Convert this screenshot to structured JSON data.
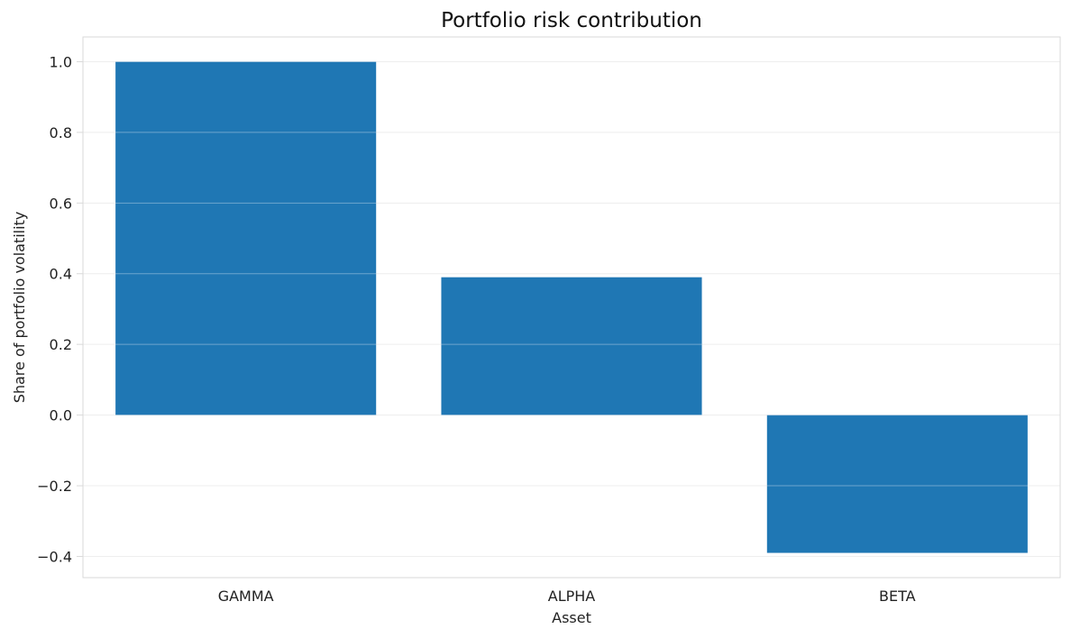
{
  "chart_data": {
    "type": "bar",
    "title": "Portfolio risk contribution",
    "xlabel": "Asset",
    "ylabel": "Share of portfolio volatility",
    "categories": [
      "GAMMA",
      "ALPHA",
      "BETA"
    ],
    "values": [
      1.0,
      0.39,
      -0.39
    ],
    "ylim": [
      -0.46,
      1.07
    ],
    "yticks": [
      1.0,
      0.8,
      0.6,
      0.4,
      0.2,
      0.0,
      -0.2,
      -0.4
    ],
    "ytick_labels": [
      "1.0",
      "0.8",
      "0.6",
      "0.4",
      "0.2",
      "0.0",
      "−0.2",
      "−0.4"
    ],
    "grid": true,
    "colors": {
      "bar": "#1f77b4",
      "grid": "#e5e5e5",
      "frame": "#d9d9d9"
    }
  }
}
